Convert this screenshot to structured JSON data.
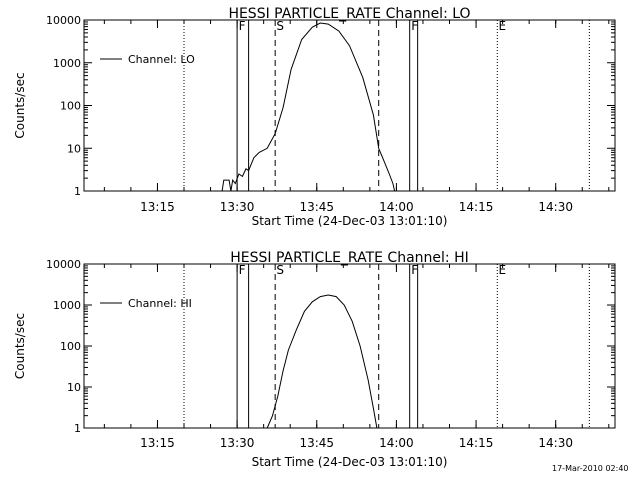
{
  "timestamp": "17-Mar-2010 02:40",
  "chart_data": [
    {
      "type": "line",
      "title": "HESSI PARTICLE_RATE Channel: LO",
      "xlabel": "Start Time (24-Dec-03 13:01:10)",
      "ylabel": "Counts/sec",
      "yscale": "log",
      "xlim": [
        "13:01:10",
        "14:41:10"
      ],
      "ylim": [
        1,
        10000
      ],
      "x_ticks": [
        "13:15",
        "13:30",
        "13:45",
        "14:00",
        "14:15",
        "14:30"
      ],
      "y_ticks": [
        "1",
        "10",
        "100",
        "1000",
        "10000"
      ],
      "legend": {
        "label": "Channel: LO",
        "placement": "top-left"
      },
      "markers": [
        {
          "label": "F",
          "time": "13:30:00",
          "style": "solid"
        },
        {
          "label": "",
          "time": "13:32:10",
          "style": "solid"
        },
        {
          "label": "S",
          "time": "13:37:10",
          "style": "dashed"
        },
        {
          "label": "",
          "time": "13:56:40",
          "style": "dashed"
        },
        {
          "label": "F",
          "time": "14:02:30",
          "style": "solid"
        },
        {
          "label": "",
          "time": "14:04:00",
          "style": "solid"
        },
        {
          "label": "E",
          "time": "14:19:00",
          "style": "dotted"
        }
      ],
      "extra_dotted_lines": [
        "13:20:00",
        "14:36:20"
      ],
      "series": [
        {
          "name": "Channel: LO",
          "points": [
            [
              "13:27:10",
              1
            ],
            [
              "13:27:30",
              1.8
            ],
            [
              "13:28:30",
              1.8
            ],
            [
              "13:28:50",
              1
            ],
            [
              "13:29:10",
              1.8
            ],
            [
              "13:29:40",
              1.5
            ],
            [
              "13:30:20",
              2.5
            ],
            [
              "13:31:00",
              2.2
            ],
            [
              "13:31:40",
              3.3
            ],
            [
              "13:32:10",
              3.0
            ],
            [
              "13:33:10",
              6
            ],
            [
              "13:34:10",
              8
            ],
            [
              "13:35:40",
              10
            ],
            [
              "13:37:10",
              22
            ],
            [
              "13:38:40",
              90
            ],
            [
              "13:40:10",
              700
            ],
            [
              "13:42:10",
              3500
            ],
            [
              "13:44:10",
              6800
            ],
            [
              "13:45:40",
              8500
            ],
            [
              "13:47:10",
              8000
            ],
            [
              "13:49:10",
              5500
            ],
            [
              "13:51:10",
              2500
            ],
            [
              "13:53:40",
              450
            ],
            [
              "13:55:40",
              60
            ],
            [
              "13:56:40",
              10
            ],
            [
              "13:57:40",
              5
            ],
            [
              "13:58:40",
              2.5
            ],
            [
              "13:59:20",
              1.5
            ],
            [
              "13:59:40",
              1
            ]
          ]
        }
      ]
    },
    {
      "type": "line",
      "title": "HESSI PARTICLE_RATE Channel: HI",
      "xlabel": "Start Time (24-Dec-03 13:01:10)",
      "ylabel": "Counts/sec",
      "yscale": "log",
      "xlim": [
        "13:01:10",
        "14:41:10"
      ],
      "ylim": [
        1,
        10000
      ],
      "x_ticks": [
        "13:15",
        "13:30",
        "13:45",
        "14:00",
        "14:15",
        "14:30"
      ],
      "y_ticks": [
        "1",
        "10",
        "100",
        "1000",
        "10000"
      ],
      "legend": {
        "label": "Channel: HI",
        "placement": "top-left"
      },
      "markers": [
        {
          "label": "F",
          "time": "13:30:00",
          "style": "solid"
        },
        {
          "label": "",
          "time": "13:32:10",
          "style": "solid"
        },
        {
          "label": "S",
          "time": "13:37:10",
          "style": "dashed"
        },
        {
          "label": "",
          "time": "13:56:40",
          "style": "dashed"
        },
        {
          "label": "F",
          "time": "14:02:30",
          "style": "solid"
        },
        {
          "label": "",
          "time": "14:04:00",
          "style": "solid"
        },
        {
          "label": "E",
          "time": "14:19:00",
          "style": "dotted"
        }
      ],
      "extra_dotted_lines": [
        "13:20:00",
        "14:36:20"
      ],
      "series": [
        {
          "name": "Channel: HI",
          "points": [
            [
              "13:35:40",
              1
            ],
            [
              "13:36:40",
              2
            ],
            [
              "13:37:40",
              6
            ],
            [
              "13:38:40",
              25
            ],
            [
              "13:39:40",
              80
            ],
            [
              "13:41:10",
              250
            ],
            [
              "13:42:40",
              700
            ],
            [
              "13:44:10",
              1200
            ],
            [
              "13:45:40",
              1600
            ],
            [
              "13:47:10",
              1750
            ],
            [
              "13:48:40",
              1600
            ],
            [
              "13:50:10",
              1000
            ],
            [
              "13:51:40",
              400
            ],
            [
              "13:53:10",
              100
            ],
            [
              "13:54:40",
              15
            ],
            [
              "13:55:40",
              3
            ],
            [
              "13:56:20",
              1
            ]
          ]
        }
      ]
    }
  ]
}
